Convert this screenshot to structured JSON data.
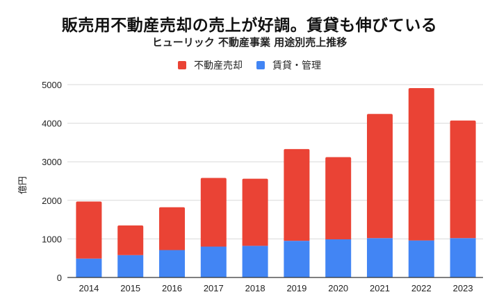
{
  "chart_data": {
    "type": "bar",
    "stacked": true,
    "title": "販売用不動産売却の売上が好調。賃貸も伸びている",
    "subtitle": "ヒューリック 不動産事業 用途別売上推移",
    "xlabel": "",
    "ylabel": "億円",
    "ylim": [
      0,
      5000
    ],
    "yticks": [
      0,
      1000,
      2000,
      3000,
      4000,
      5000
    ],
    "grid": true,
    "legend_position": "top-center",
    "categories": [
      "2014",
      "2015",
      "2016",
      "2017",
      "2018",
      "2019",
      "2020",
      "2021",
      "2022",
      "2023"
    ],
    "series": [
      {
        "name": "賃貸・管理",
        "color": "#4285F4",
        "values": [
          490,
          580,
          710,
          800,
          820,
          950,
          990,
          1020,
          960,
          1020
        ]
      },
      {
        "name": "不動産売却",
        "color": "#EA4335",
        "values": [
          1480,
          770,
          1110,
          1780,
          1740,
          2380,
          2130,
          3220,
          3950,
          3050
        ]
      }
    ],
    "totals": [
      1970,
      1350,
      1820,
      2580,
      2560,
      3330,
      3120,
      4240,
      4910,
      4070
    ],
    "legend_order": [
      "不動産売却",
      "賃貸・管理"
    ]
  },
  "legend": {
    "items": [
      {
        "label": "不動産売却",
        "color": "#EA4335"
      },
      {
        "label": "賃貸・管理",
        "color": "#4285F4"
      }
    ]
  },
  "colors": {
    "gridline": "#d9d9d9",
    "baseline": "#333333"
  }
}
